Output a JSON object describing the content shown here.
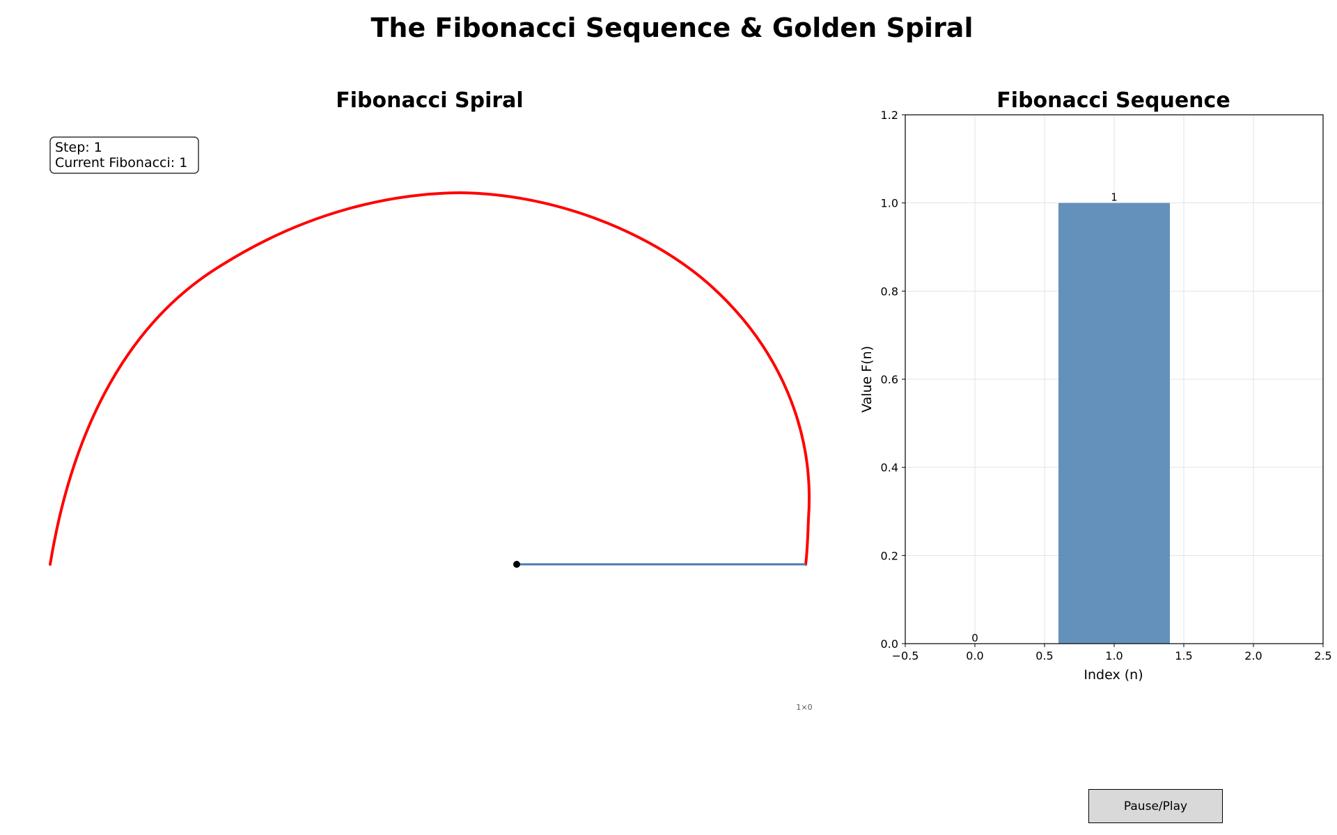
{
  "figure": {
    "suptitle": "The Fibonacci Sequence & Golden Spiral"
  },
  "spiral_panel": {
    "title": "Fibonacci Spiral",
    "info_line1": "Step: 1",
    "info_line2": "Current Fibonacci: 1",
    "corner_note": "1×0",
    "spiral_color": "#ff0000",
    "segment_color": "#4a7bb0",
    "center_dot_color": "#000000"
  },
  "controls": {
    "pause_play_label": "Pause/Play"
  },
  "chart_data": {
    "type": "bar",
    "title": "Fibonacci Sequence",
    "xlabel": "Index (n)",
    "ylabel": "Value F(n)",
    "x": [
      0,
      1
    ],
    "values": [
      0,
      1
    ],
    "data_labels": [
      "0",
      "1"
    ],
    "bar_width": 0.8,
    "bar_color": "#5b8bb8",
    "xlim": [
      -0.5,
      2.5
    ],
    "ylim": [
      0,
      1.2
    ],
    "xticks": [
      "−0.5",
      "0.0",
      "0.5",
      "1.0",
      "1.5",
      "2.0",
      "2.5"
    ],
    "yticks": [
      "0.0",
      "0.2",
      "0.4",
      "0.6",
      "0.8",
      "1.0",
      "1.2"
    ],
    "grid": true
  }
}
